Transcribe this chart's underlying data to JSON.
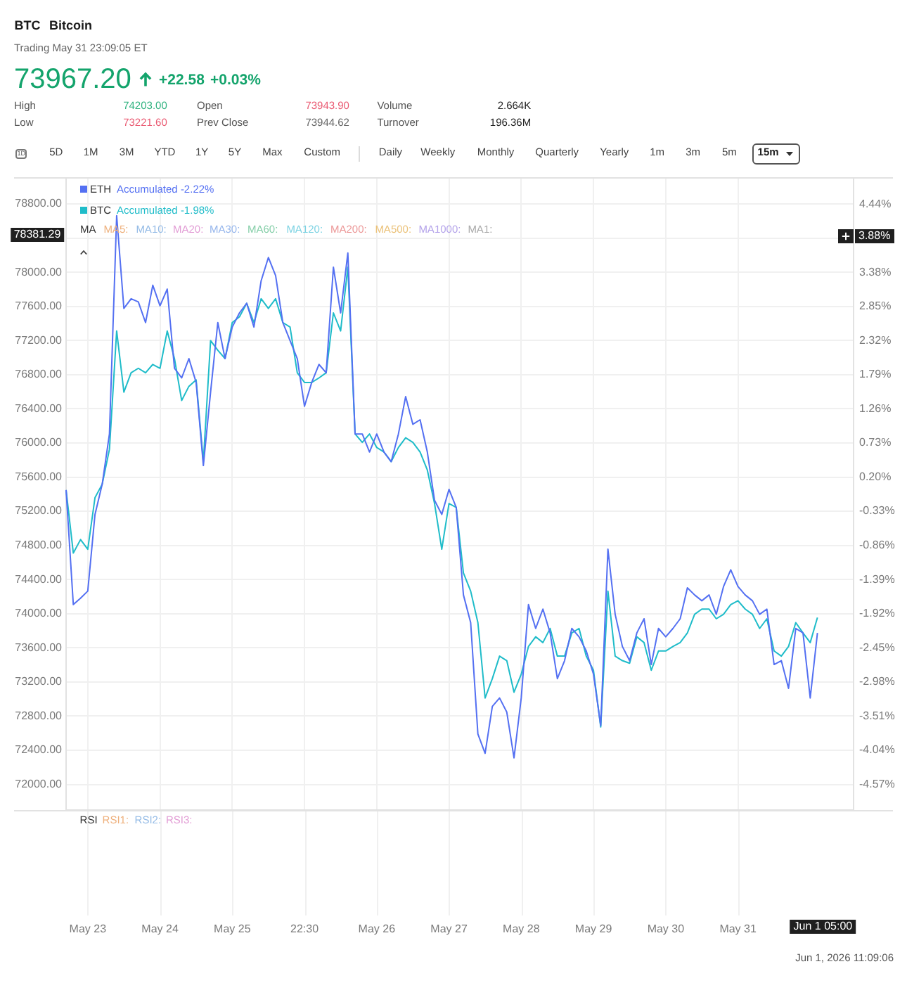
{
  "chart_data": [
    {
      "type": "other",
      "title": "BTC",
      "subtitle": "Bitcoin",
      "annotations": [
        "Trading May 31 23:09:05 ET",
        "73967.20",
        "+22.58",
        "+0.03%",
        "High",
        "74203.00",
        "Open",
        "73943.90",
        "Volume",
        "2.664K",
        "Low",
        "73221.60",
        "Prev Close",
        "73944.62",
        "Turnover",
        "196.36M",
        "1D",
        "5D",
        "1M",
        "3M",
        "YTD",
        "1Y",
        "5Y",
        "Max",
        "Custom",
        "Daily",
        "Weekly",
        "Monthly",
        "Quarterly",
        "Yearly",
        "1m",
        "3m",
        "5m",
        "15m"
      ]
    },
    {
      "type": "line",
      "legend": "top left",
      "grid": true,
      "marker": "none",
      "categories": [
        null,
        null,
        null,
        "May 23",
        null,
        null,
        null,
        null,
        null,
        null,
        null,
        null,
        null,
        "May 24",
        null,
        null,
        null,
        null,
        null,
        null,
        null,
        null,
        null,
        "May 25",
        null,
        null,
        null,
        null,
        null,
        null,
        null,
        null,
        null,
        "22:30",
        null,
        null,
        null,
        null,
        null,
        null,
        null,
        null,
        null,
        "May 26",
        null,
        null,
        null,
        null,
        null,
        null,
        null,
        null,
        null,
        "May 27",
        null,
        null,
        null,
        null,
        null,
        null,
        null,
        null,
        null,
        "May 28",
        null,
        null,
        null,
        null,
        null,
        null,
        null,
        null,
        null,
        "May 29",
        null,
        null,
        null,
        null,
        null,
        null,
        null,
        null,
        null,
        "May 30",
        null,
        null,
        null,
        null,
        null,
        null,
        null,
        null,
        null,
        "May 31",
        null,
        null,
        null,
        null,
        null,
        null,
        null,
        null,
        null,
        null,
        null,
        null,
        null,
        null,
        null,
        null
      ],
      "ylim": [
        71700,
        79100
      ],
      "yticks": [
        {
          "value": 72000,
          "label": "72000.00"
        },
        {
          "value": 72400,
          "label": "72400.00"
        },
        {
          "value": 72800,
          "label": "72800.00"
        },
        {
          "value": 73200,
          "label": "73200.00"
        },
        {
          "value": 73600,
          "label": "73600.00"
        },
        {
          "value": 74000,
          "label": "74000.00"
        },
        {
          "value": 74400,
          "label": "74400.00"
        },
        {
          "value": 74800,
          "label": "74800.00"
        },
        {
          "value": 75200,
          "label": "75200.00"
        },
        {
          "value": 75600,
          "label": "75600.00"
        },
        {
          "value": 76000,
          "label": "76000.00"
        },
        {
          "value": 76400,
          "label": "76400.00"
        },
        {
          "value": 76800,
          "label": "76800.00"
        },
        {
          "value": 77200,
          "label": "77200.00"
        },
        {
          "value": 77600,
          "label": "77600.00"
        },
        {
          "value": 78000,
          "label": "78000.00"
        },
        {
          "value": 78400,
          "label": null
        },
        {
          "value": 78800,
          "label": "78800.00"
        }
      ],
      "y2lim": [
        -4.97,
        4.84
      ],
      "y2ticks": [
        {
          "value": -4.57,
          "label": "-4.57%"
        },
        {
          "value": -4.04,
          "label": "-4.04%"
        },
        {
          "value": -3.51,
          "label": "-3.51%"
        },
        {
          "value": -2.98,
          "label": "-2.98%"
        },
        {
          "value": -2.45,
          "label": "-2.45%"
        },
        {
          "value": -1.92,
          "label": "-1.92%"
        },
        {
          "value": -1.39,
          "label": "-1.39%"
        },
        {
          "value": -0.86,
          "label": "-0.86%"
        },
        {
          "value": -0.33,
          "label": "-0.33%"
        },
        {
          "value": 0.2,
          "label": "0.20%"
        },
        {
          "value": 0.73,
          "label": "0.73%"
        },
        {
          "value": 1.26,
          "label": "1.26%"
        },
        {
          "value": 1.79,
          "label": "1.79%"
        },
        {
          "value": 2.32,
          "label": "2.32%"
        },
        {
          "value": 2.85,
          "label": "2.85%"
        },
        {
          "value": 3.38,
          "label": "3.38%"
        },
        {
          "value": 3.91,
          "label": null
        },
        {
          "value": 4.44,
          "label": "4.44%"
        }
      ],
      "series": [
        {
          "name": "ETH Accumulated -2.22%",
          "color": "#5470f2",
          "axis": "y2",
          "values": [
            0,
            -1.78,
            -1.68,
            -1.57,
            -0.38,
            0.09,
            0.87,
            4.26,
            2.82,
            2.97,
            2.92,
            2.6,
            3.18,
            2.86,
            3.12,
            1.89,
            1.74,
            2.04,
            1.67,
            0.38,
            1.52,
            2.6,
            2.04,
            2.53,
            2.75,
            2.9,
            2.53,
            3.25,
            3.61,
            3.33,
            2.6,
            2.32,
            2.04,
            1.3,
            1.67,
            1.95,
            1.82,
            3.46,
            2.75,
            3.68,
            0.87,
            0.87,
            0.59,
            0.87,
            0.59,
            0.44,
            0.87,
            1.45,
            1.02,
            1.09,
            0.59,
            -0.16,
            -0.38,
            0.01,
            -0.27,
            -1.63,
            -2.06,
            -3.79,
            -4.09,
            -3.36,
            -3.23,
            -3.45,
            -4.16,
            -3.23,
            -1.78,
            -2.15,
            -1.85,
            -2.22,
            -2.93,
            -2.65,
            -2.15,
            -2.28,
            -2.5,
            -2.86,
            -3.66,
            -0.92,
            -1.93,
            -2.43,
            -2.65,
            -2.22,
            -2.0,
            -2.71,
            -2.15,
            -2.28,
            -2.15,
            -2.0,
            -1.52,
            -1.63,
            -1.72,
            -1.63,
            -1.93,
            -1.5,
            -1.24,
            -1.5,
            -1.63,
            -1.72,
            -1.93,
            -1.85,
            -2.71,
            -2.65,
            -3.08,
            -2.15,
            -2.22,
            -3.23,
            -2.22,
            null,
            null,
            null,
            null,
            null
          ]
        },
        {
          "name": "BTC Accumulated -1.98%",
          "color": "#1fbcc9",
          "axis": "y2",
          "values": [
            0,
            -0.98,
            -0.77,
            -0.92,
            -0.12,
            0.09,
            0.63,
            2.47,
            1.52,
            1.82,
            1.89,
            1.82,
            1.95,
            1.89,
            2.47,
            2.04,
            1.39,
            1.61,
            1.71,
            0.44,
            2.32,
            2.17,
            2.04,
            2.6,
            2.69,
            2.9,
            2.6,
            2.97,
            2.82,
            2.97,
            2.6,
            2.53,
            1.82,
            1.67,
            1.67,
            1.74,
            1.82,
            2.75,
            2.47,
            3.46,
            0.87,
            0.74,
            0.87,
            0.66,
            0.59,
            0.44,
            0.66,
            0.81,
            0.74,
            0.59,
            0.31,
            -0.21,
            -0.92,
            -0.21,
            -0.27,
            -1.29,
            -1.57,
            -2.06,
            -3.23,
            -2.93,
            -2.58,
            -2.65,
            -3.14,
            -2.86,
            -2.43,
            -2.28,
            -2.37,
            -2.15,
            -2.58,
            -2.58,
            -2.22,
            -2.15,
            -2.58,
            -2.8,
            -3.68,
            -1.57,
            -2.58,
            -2.65,
            -2.69,
            -2.28,
            -2.37,
            -2.8,
            -2.5,
            -2.5,
            -2.43,
            -2.37,
            -2.22,
            -1.93,
            -1.85,
            -1.85,
            -2.0,
            -1.93,
            -1.78,
            -1.72,
            -1.85,
            -1.93,
            -2.15,
            -2.0,
            -2.5,
            -2.58,
            -2.43,
            -2.06,
            -2.22,
            -2.37,
            -1.98,
            null,
            null,
            null,
            null,
            null
          ]
        }
      ],
      "annotations": [
        "MA",
        "MA5:",
        "MA10:",
        "MA20:",
        "MA30:",
        "MA60:",
        "MA120:",
        "MA200:",
        "MA500:",
        "MA1000:",
        "MA1:",
        "RSI",
        "RSI1:",
        "RSI2:",
        "RSI3:",
        "78381.29",
        "3.88%",
        "Jun 1 05:00",
        "Jun 1, 2026 11:09:06"
      ]
    }
  ]
}
